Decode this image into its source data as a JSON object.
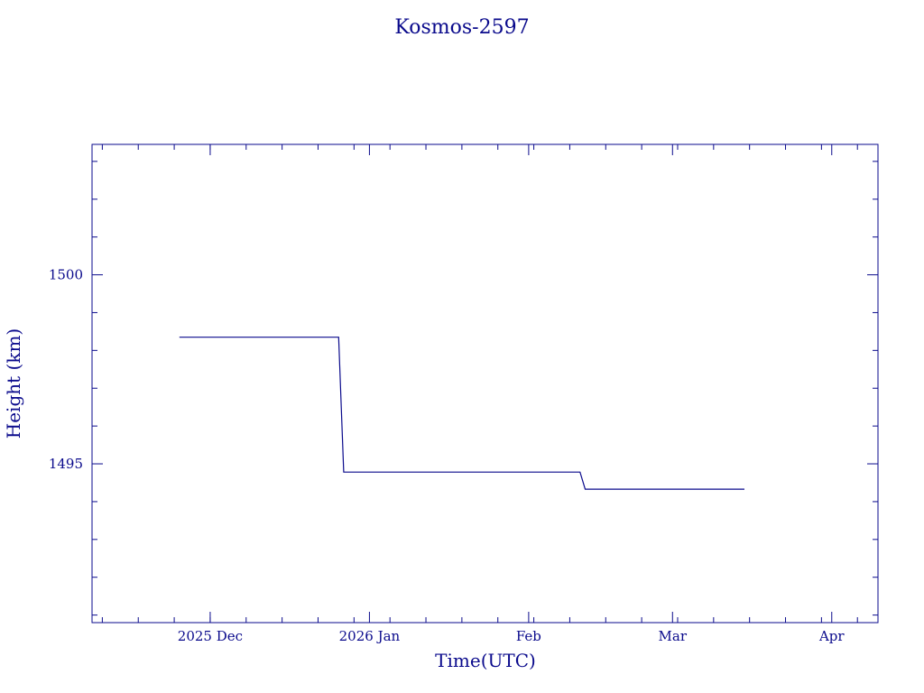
{
  "chart_data": {
    "type": "line",
    "title": "Kosmos-2597",
    "xlabel": "Time(UTC)",
    "ylabel": "Height (km)",
    "x_tick_labels": [
      "2025 Dec",
      "2026 Jan",
      "Feb",
      "Mar",
      "Apr"
    ],
    "x_tick_dates": [
      "2025-12-01",
      "2026-01-01",
      "2026-02-01",
      "2026-03-01",
      "2026-04-01"
    ],
    "xlim": [
      "2025-11-08",
      "2026-04-10"
    ],
    "y_tick_labels": [
      "1495",
      "1500"
    ],
    "y_tick_values": [
      1495,
      1500
    ],
    "ylim": [
      1490.8,
      1503.45
    ],
    "y_minor_step": 1,
    "grid": false,
    "series": [
      {
        "points": [
          {
            "x": "2025-11-25",
            "y": 1498.35
          },
          {
            "x": "2025-12-26",
            "y": 1498.35
          },
          {
            "x": "2025-12-27",
            "y": 1494.78
          },
          {
            "x": "2026-02-11",
            "y": 1494.78
          },
          {
            "x": "2026-02-12",
            "y": 1494.33
          },
          {
            "x": "2026-03-15",
            "y": 1494.33
          }
        ]
      }
    ]
  }
}
